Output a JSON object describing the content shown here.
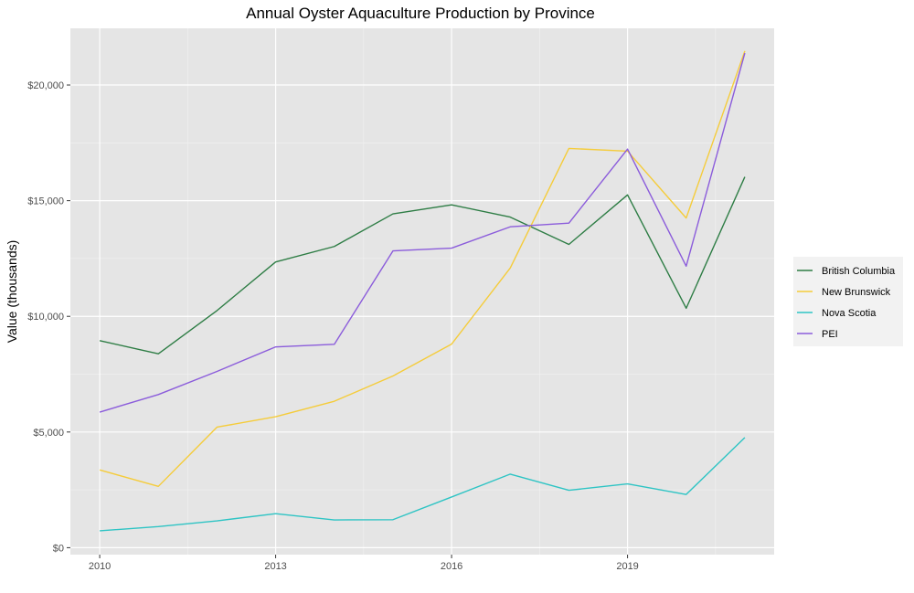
{
  "chart_data": {
    "type": "line",
    "title": "Annual Oyster Aquaculture Production by Province",
    "xlabel": "",
    "ylabel": "Value (thousands)",
    "x": [
      2010,
      2011,
      2012,
      2013,
      2014,
      2015,
      2016,
      2017,
      2018,
      2019,
      2020,
      2021
    ],
    "xlim": [
      2009.5,
      2021.5
    ],
    "ylim": [
      -300,
      22450
    ],
    "x_ticks": [
      2010,
      2013,
      2016,
      2019
    ],
    "x_tick_labels": [
      "2010",
      "2013",
      "2016",
      "2019"
    ],
    "y_ticks": [
      0,
      5000,
      10000,
      15000,
      20000
    ],
    "y_tick_labels": [
      "$0",
      "$5,000",
      "$10,000",
      "$15,000",
      "$20,000"
    ],
    "grid": true,
    "legend_position": "right",
    "series": [
      {
        "name": "British Columbia",
        "color": "#2e7d45",
        "values": [
          8950,
          8380,
          10250,
          12350,
          13020,
          14430,
          14820,
          14290,
          13110,
          15250,
          10350,
          16030
        ]
      },
      {
        "name": "New Brunswick",
        "color": "#f5cc3a",
        "values": [
          3360,
          2650,
          5210,
          5660,
          6330,
          7420,
          8800,
          12090,
          17260,
          17140,
          14250,
          21470
        ]
      },
      {
        "name": "Nova Scotia",
        "color": "#2ec4c4",
        "values": [
          730,
          910,
          1160,
          1470,
          1200,
          1210,
          2190,
          3180,
          2480,
          2760,
          2300,
          4760
        ]
      },
      {
        "name": "PEI",
        "color": "#8b5cdb",
        "values": [
          5860,
          6620,
          7620,
          8680,
          8790,
          12830,
          12950,
          13870,
          14030,
          17230,
          12170,
          21380
        ]
      }
    ]
  }
}
